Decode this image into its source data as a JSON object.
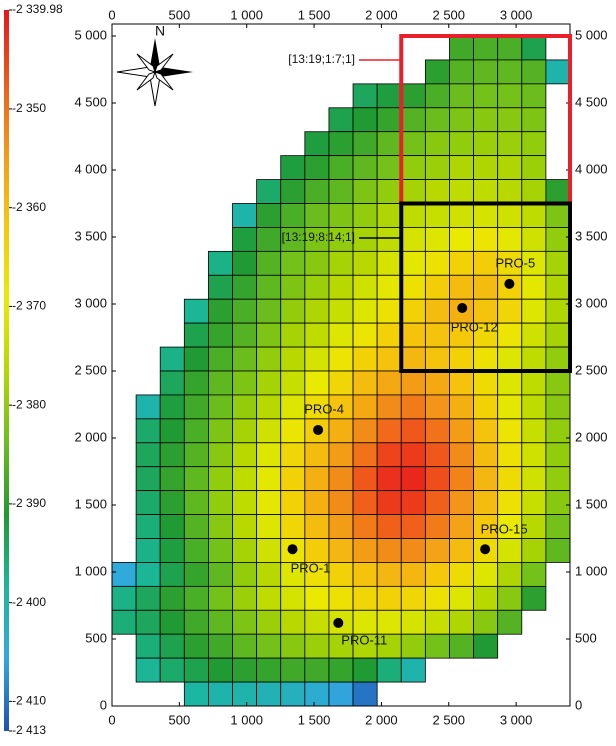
{
  "chart_data": {
    "type": "heatmap",
    "xlim": [
      0,
      3400
    ],
    "ylim": [
      0,
      5000
    ],
    "xticks": [
      0,
      500,
      {
        "value": 1000,
        "label": "1 000"
      },
      {
        "value": 1500,
        "label": "1 500"
      },
      {
        "value": 2000,
        "label": "2 000"
      },
      {
        "value": 2500,
        "label": "2 500"
      },
      {
        "value": 3000,
        "label": "3 000"
      }
    ],
    "yticks": [
      0,
      500,
      {
        "value": 1000,
        "label": "1 000"
      },
      {
        "value": 1500,
        "label": "1 500"
      },
      {
        "value": 2000,
        "label": "2 000"
      },
      {
        "value": 2500,
        "label": "2 500"
      },
      {
        "value": 3000,
        "label": "3 000"
      },
      {
        "value": 3500,
        "label": "3 500"
      },
      {
        "value": 4000,
        "label": "4 000"
      },
      {
        "value": 4500,
        "label": "4 500"
      },
      {
        "value": 5000,
        "label": "5 000"
      }
    ],
    "compass_label": "N",
    "colorbar": {
      "lim": [
        -2413,
        -2339.98
      ],
      "ticks": [
        {
          "value": -2339.98,
          "label": "-2 339.98"
        },
        {
          "value": -2350,
          "label": "-2 350"
        },
        {
          "value": -2360,
          "label": "-2 360"
        },
        {
          "value": -2370,
          "label": "-2 370"
        },
        {
          "value": -2380,
          "label": "-2 380"
        },
        {
          "value": -2390,
          "label": "-2 390"
        },
        {
          "value": -2400,
          "label": "-2 400"
        },
        {
          "value": -2410,
          "label": "-2 410"
        },
        {
          "value": -2413,
          "label": "-2 413"
        }
      ],
      "colors": [
        "#1e4fb0",
        "#32a8e0",
        "#1ab89c",
        "#1f9a32",
        "#6cbe1c",
        "#b4d800",
        "#eaea00",
        "#f5c80a",
        "#f39a18",
        "#f05a1a",
        "#e8141c"
      ]
    },
    "grid": [
      [
        null,
        null,
        null,
        null,
        null,
        null,
        null,
        null,
        null,
        null,
        null,
        null,
        null,
        null,
        -2388,
        -2387,
        -2387,
        -2393,
        null
      ],
      [
        null,
        null,
        null,
        null,
        null,
        null,
        null,
        null,
        null,
        null,
        null,
        null,
        null,
        -2390,
        -2386,
        -2385,
        -2385,
        -2386,
        -2400
      ],
      [
        null,
        null,
        null,
        null,
        null,
        null,
        null,
        null,
        null,
        null,
        -2394,
        -2392,
        -2390,
        -2387,
        -2384,
        -2383,
        -2383,
        -2384,
        null
      ],
      [
        null,
        null,
        null,
        null,
        null,
        null,
        null,
        null,
        null,
        -2393,
        -2391,
        -2389,
        -2386,
        -2384,
        -2382,
        -2381,
        -2381,
        -2382,
        null
      ],
      [
        null,
        null,
        null,
        null,
        null,
        null,
        null,
        null,
        -2392,
        -2390,
        -2388,
        -2385,
        -2383,
        -2381,
        -2380,
        -2379,
        -2379,
        -2380,
        null
      ],
      [
        null,
        null,
        null,
        null,
        null,
        null,
        null,
        -2392,
        -2390,
        -2387,
        -2385,
        -2383,
        -2380,
        -2379,
        -2377,
        -2377,
        -2377,
        -2379,
        null
      ],
      [
        null,
        null,
        null,
        null,
        null,
        null,
        -2395,
        -2390,
        -2387,
        -2385,
        -2382,
        -2380,
        -2378,
        -2376,
        -2375,
        -2375,
        -2376,
        -2378,
        -2390
      ],
      [
        null,
        null,
        null,
        null,
        null,
        -2400,
        -2390,
        -2387,
        -2384,
        -2382,
        -2380,
        -2377,
        -2375,
        -2374,
        -2373,
        -2372,
        -2373,
        -2375,
        -2382
      ],
      [
        null,
        null,
        null,
        null,
        null,
        -2392,
        -2388,
        -2385,
        -2382,
        -2380,
        -2378,
        -2375,
        -2372,
        -2371,
        -2369,
        -2368,
        -2370,
        -2373,
        -2380
      ],
      [
        null,
        null,
        null,
        null,
        -2397,
        -2391,
        -2386,
        -2383,
        -2381,
        -2378,
        -2376,
        -2372,
        -2370,
        -2367,
        -2364,
        -2363,
        -2366,
        -2371,
        -2378
      ],
      [
        null,
        null,
        null,
        null,
        -2393,
        -2389,
        -2385,
        -2382,
        -2379,
        -2376,
        -2373,
        -2370,
        -2367,
        -2363,
        -2360,
        -2360,
        -2364,
        -2370,
        -2377
      ],
      [
        null,
        null,
        null,
        -2398,
        -2390,
        -2387,
        -2384,
        -2380,
        -2377,
        -2374,
        -2371,
        -2367,
        -2364,
        -2360,
        -2358,
        -2361,
        -2365,
        -2371,
        -2377
      ],
      [
        null,
        null,
        null,
        -2393,
        -2389,
        -2386,
        -2382,
        -2378,
        -2375,
        -2371,
        -2368,
        -2364,
        -2361,
        -2361,
        -2362,
        -2365,
        -2368,
        -2373,
        -2378
      ],
      [
        null,
        null,
        -2397,
        -2391,
        -2387,
        -2384,
        -2380,
        -2376,
        -2372,
        -2368,
        -2364,
        -2361,
        -2359,
        -2361,
        -2364,
        -2367,
        -2371,
        -2375,
        -2380
      ],
      [
        null,
        null,
        -2394,
        -2389,
        -2385,
        -2382,
        -2378,
        -2374,
        -2369,
        -2365,
        -2360,
        -2357,
        -2355,
        -2357,
        -2361,
        -2366,
        -2371,
        -2375,
        -2381
      ],
      [
        null,
        -2400,
        -2392,
        -2388,
        -2384,
        -2380,
        -2376,
        -2371,
        -2366,
        -2361,
        -2357,
        -2353,
        -2351,
        -2354,
        -2358,
        -2364,
        -2370,
        -2375,
        -2381
      ],
      [
        null,
        -2395,
        -2391,
        -2387,
        -2382,
        -2378,
        -2373,
        -2368,
        -2363,
        -2358,
        -2353,
        -2349,
        -2347,
        -2350,
        -2355,
        -2361,
        -2368,
        -2374,
        -2380
      ],
      [
        null,
        -2394,
        -2390,
        -2386,
        -2381,
        -2376,
        -2371,
        -2365,
        -2360,
        -2355,
        -2350,
        -2345,
        -2344,
        -2347,
        -2353,
        -2360,
        -2367,
        -2373,
        -2380
      ],
      [
        null,
        -2394,
        -2389,
        -2385,
        -2380,
        -2375,
        -2370,
        -2364,
        -2358,
        -2353,
        -2347,
        -2343,
        -2342,
        -2346,
        -2352,
        -2359,
        -2366,
        -2373,
        -2380
      ],
      [
        null,
        -2395,
        -2390,
        -2385,
        -2380,
        -2375,
        -2370,
        -2364,
        -2358,
        -2353,
        -2348,
        -2344,
        -2344,
        -2348,
        -2354,
        -2360,
        -2367,
        -2374,
        -2381
      ],
      [
        null,
        -2396,
        -2391,
        -2386,
        -2381,
        -2376,
        -2371,
        -2365,
        -2360,
        -2355,
        -2351,
        -2348,
        -2348,
        -2351,
        -2356,
        -2362,
        -2369,
        -2376,
        -2383
      ],
      [
        null,
        -2397,
        -2392,
        -2387,
        -2383,
        -2378,
        -2373,
        -2368,
        -2363,
        -2359,
        -2355,
        -2353,
        -2353,
        -2356,
        -2360,
        -2366,
        -2372,
        -2378,
        -2385
      ],
      [
        -2405,
        -2398,
        -2393,
        -2389,
        -2385,
        -2380,
        -2376,
        -2371,
        -2367,
        -2364,
        -2361,
        -2359,
        -2359,
        -2362,
        -2366,
        -2371,
        -2377,
        -2383,
        null
      ],
      [
        -2397,
        -2394,
        -2390,
        -2387,
        -2383,
        -2379,
        -2375,
        -2372,
        -2369,
        -2367,
        -2365,
        -2364,
        -2365,
        -2367,
        -2371,
        -2376,
        -2381,
        -2390,
        null
      ],
      [
        -2396,
        -2394,
        -2391,
        -2388,
        -2385,
        -2382,
        -2379,
        -2376,
        -2374,
        -2372,
        -2371,
        -2371,
        -2372,
        -2374,
        -2377,
        -2381,
        -2386,
        null,
        null
      ],
      [
        null,
        -2396,
        -2393,
        -2390,
        -2388,
        -2385,
        -2383,
        -2381,
        -2379,
        -2378,
        -2377,
        -2378,
        -2380,
        -2383,
        -2386,
        -2391,
        null,
        null,
        null
      ],
      [
        null,
        -2398,
        -2395,
        -2393,
        -2391,
        -2390,
        -2389,
        -2388,
        -2388,
        -2389,
        -2391,
        -2396,
        -2400,
        null,
        null,
        null,
        null,
        null,
        null
      ],
      [
        null,
        null,
        null,
        -2399,
        -2400,
        -2400,
        -2401,
        -2402,
        -2404,
        -2406,
        -2410,
        null,
        null,
        null,
        null,
        null,
        null,
        null,
        null
      ]
    ],
    "wells": [
      {
        "name": "PRO-5",
        "x": 2950,
        "y": 3150
      },
      {
        "name": "PRO-12",
        "x": 2600,
        "y": 2970
      },
      {
        "name": "PRO-4",
        "x": 1530,
        "y": 2060
      },
      {
        "name": "PRO-1",
        "x": 1340,
        "y": 1170
      },
      {
        "name": "PRO-15",
        "x": 2770,
        "y": 1170
      },
      {
        "name": "PRO-11",
        "x": 1680,
        "y": 620
      }
    ],
    "annotations": [
      {
        "text": "[13:19;1:7;1]",
        "color": "#e8202a"
      },
      {
        "text": "[13:19;8:14;1]",
        "color": "#000000"
      }
    ]
  }
}
